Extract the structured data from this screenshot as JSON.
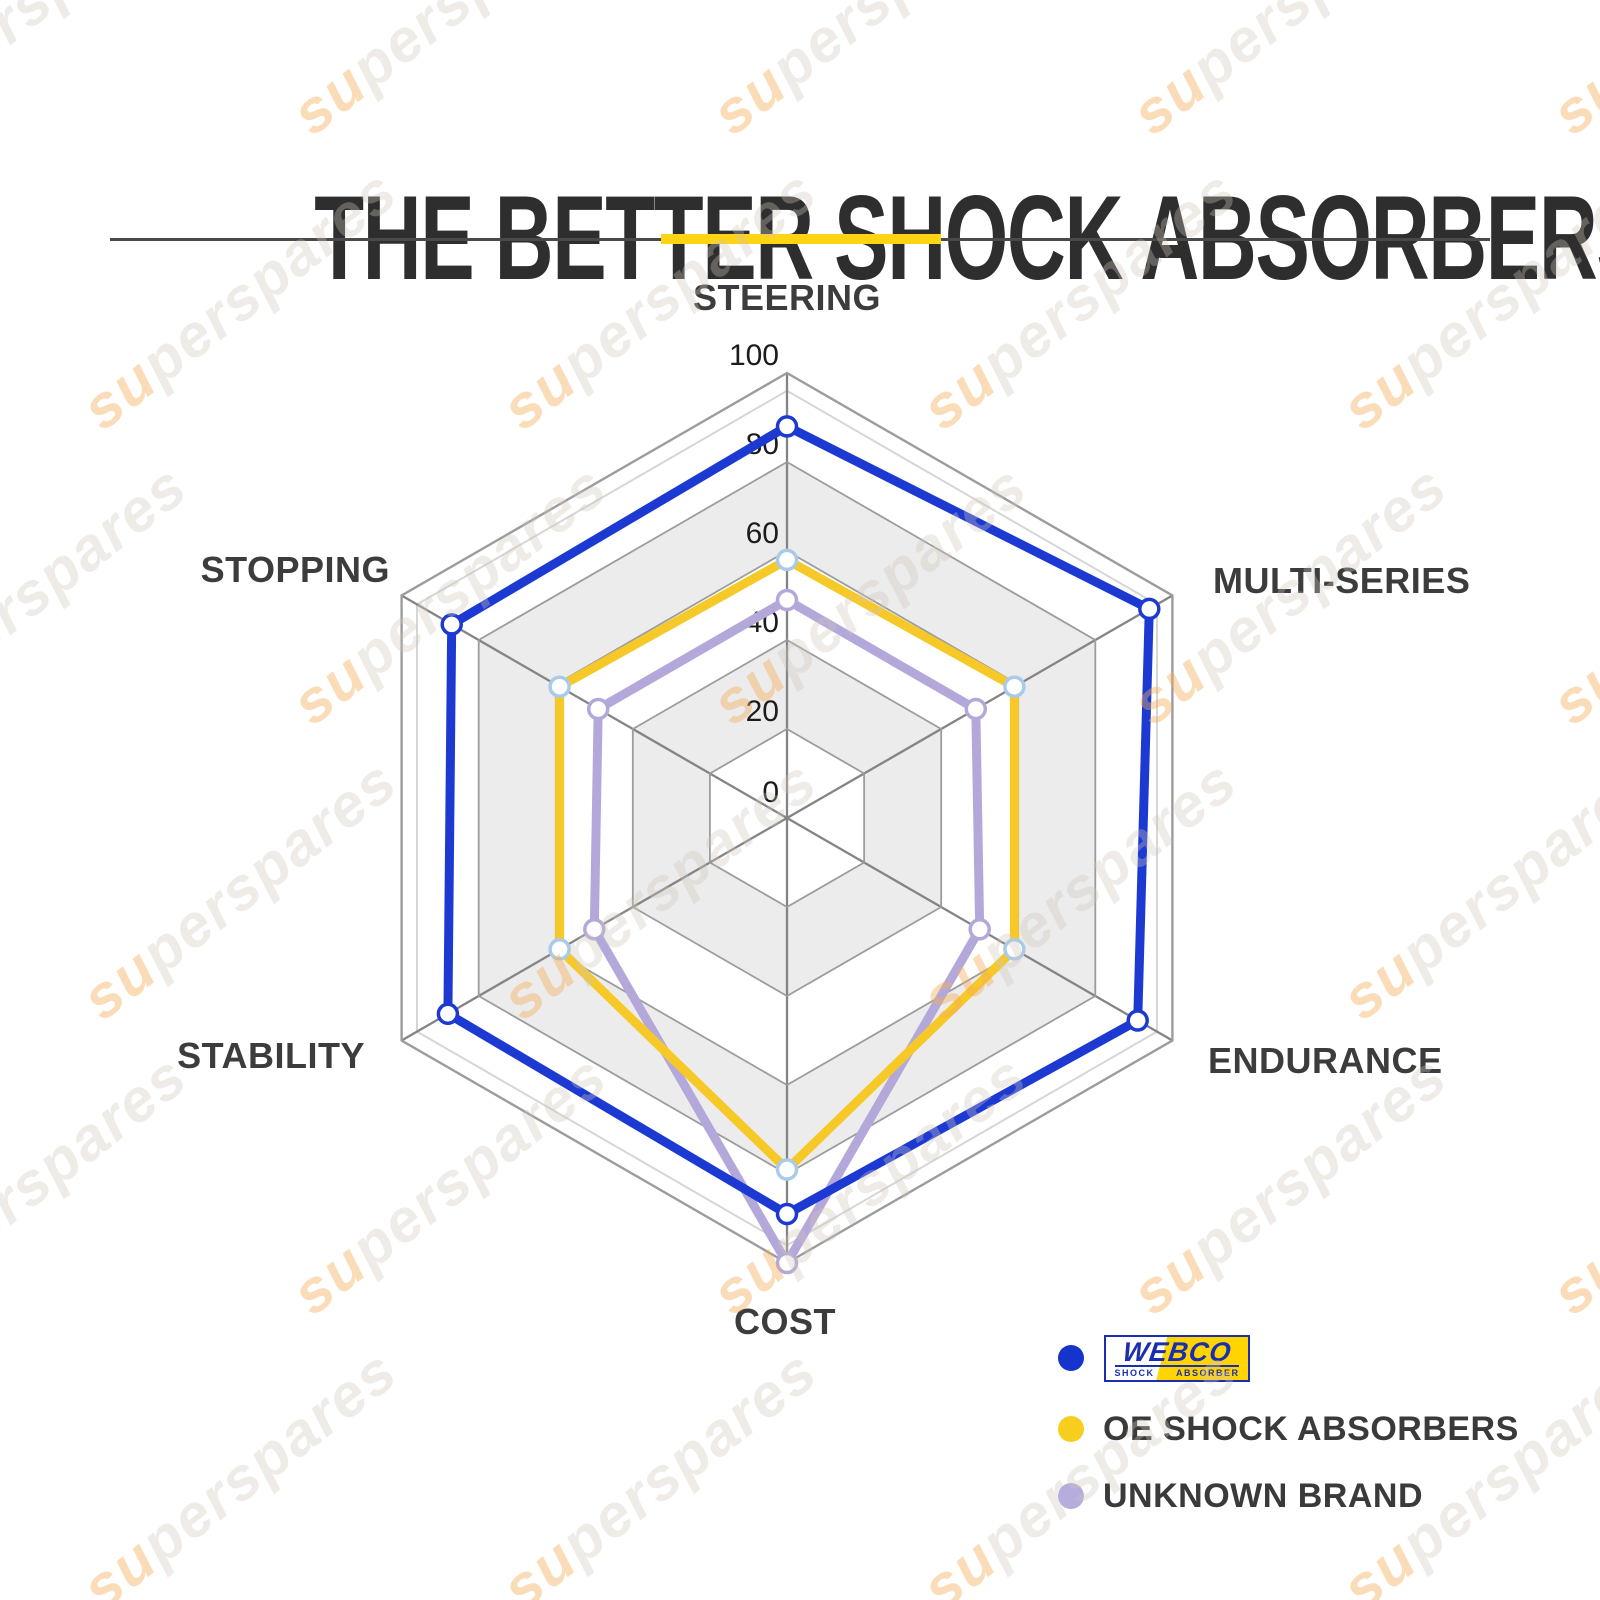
{
  "header": {
    "title": "THE BETTER SHOCK ABSORBERS",
    "accent_color": "#FFD415",
    "divider_color": "#4a4a4a"
  },
  "watermark": {
    "text": "superspares"
  },
  "chart_data": {
    "type": "radar",
    "title": "THE BETTER SHOCK ABSORBERS",
    "categories": [
      "STEERING",
      "MULTI-SERIES",
      "ENDURANCE",
      "COST",
      "STABILITY",
      "STOPPING"
    ],
    "ticks": [
      0,
      20,
      40,
      60,
      80,
      100
    ],
    "max": 100,
    "axis_range": [
      0,
      100
    ],
    "grid": {
      "ring_color": "#9c9c9c",
      "spoke_color": "#848484",
      "band_fill": "#ECECEC",
      "band_alt": "#FFFFFF",
      "bevel_color": "#D6D6D6",
      "tick_label_color": "#1b1b1b"
    },
    "series": [
      {
        "name": "WEBCO",
        "color": "#1C3AD2",
        "marker_stroke": "#1C3AD2",
        "values": [
          88,
          94,
          91,
          89,
          88,
          87
        ]
      },
      {
        "name": "OE SHOCK ABSORBERS",
        "color": "#F7C928",
        "marker_stroke": "#A9CBE8",
        "values": [
          58,
          59,
          59,
          79,
          59,
          59
        ]
      },
      {
        "name": "UNKNOWN BRAND",
        "color": "#B4A8DA",
        "marker_stroke": "#B4A8DA",
        "values": [
          49,
          49,
          50,
          100,
          50,
          49
        ]
      }
    ],
    "legend_position": "bottom-right"
  },
  "legend": {
    "items": [
      {
        "label": "WEBCO",
        "dot_color": "#1434CC",
        "logo": {
          "line1": "WEBCO",
          "line2_left": "SHOCK",
          "line2_right": "ABSORBER",
          "blue": "#1B2FAE",
          "yellow": "#FFD400"
        }
      },
      {
        "label": "OE SHOCK ABSORBERS",
        "dot_color": "#F7CE1E"
      },
      {
        "label": "UNKNOWN BRAND",
        "dot_color": "#B7ACDE"
      }
    ]
  }
}
